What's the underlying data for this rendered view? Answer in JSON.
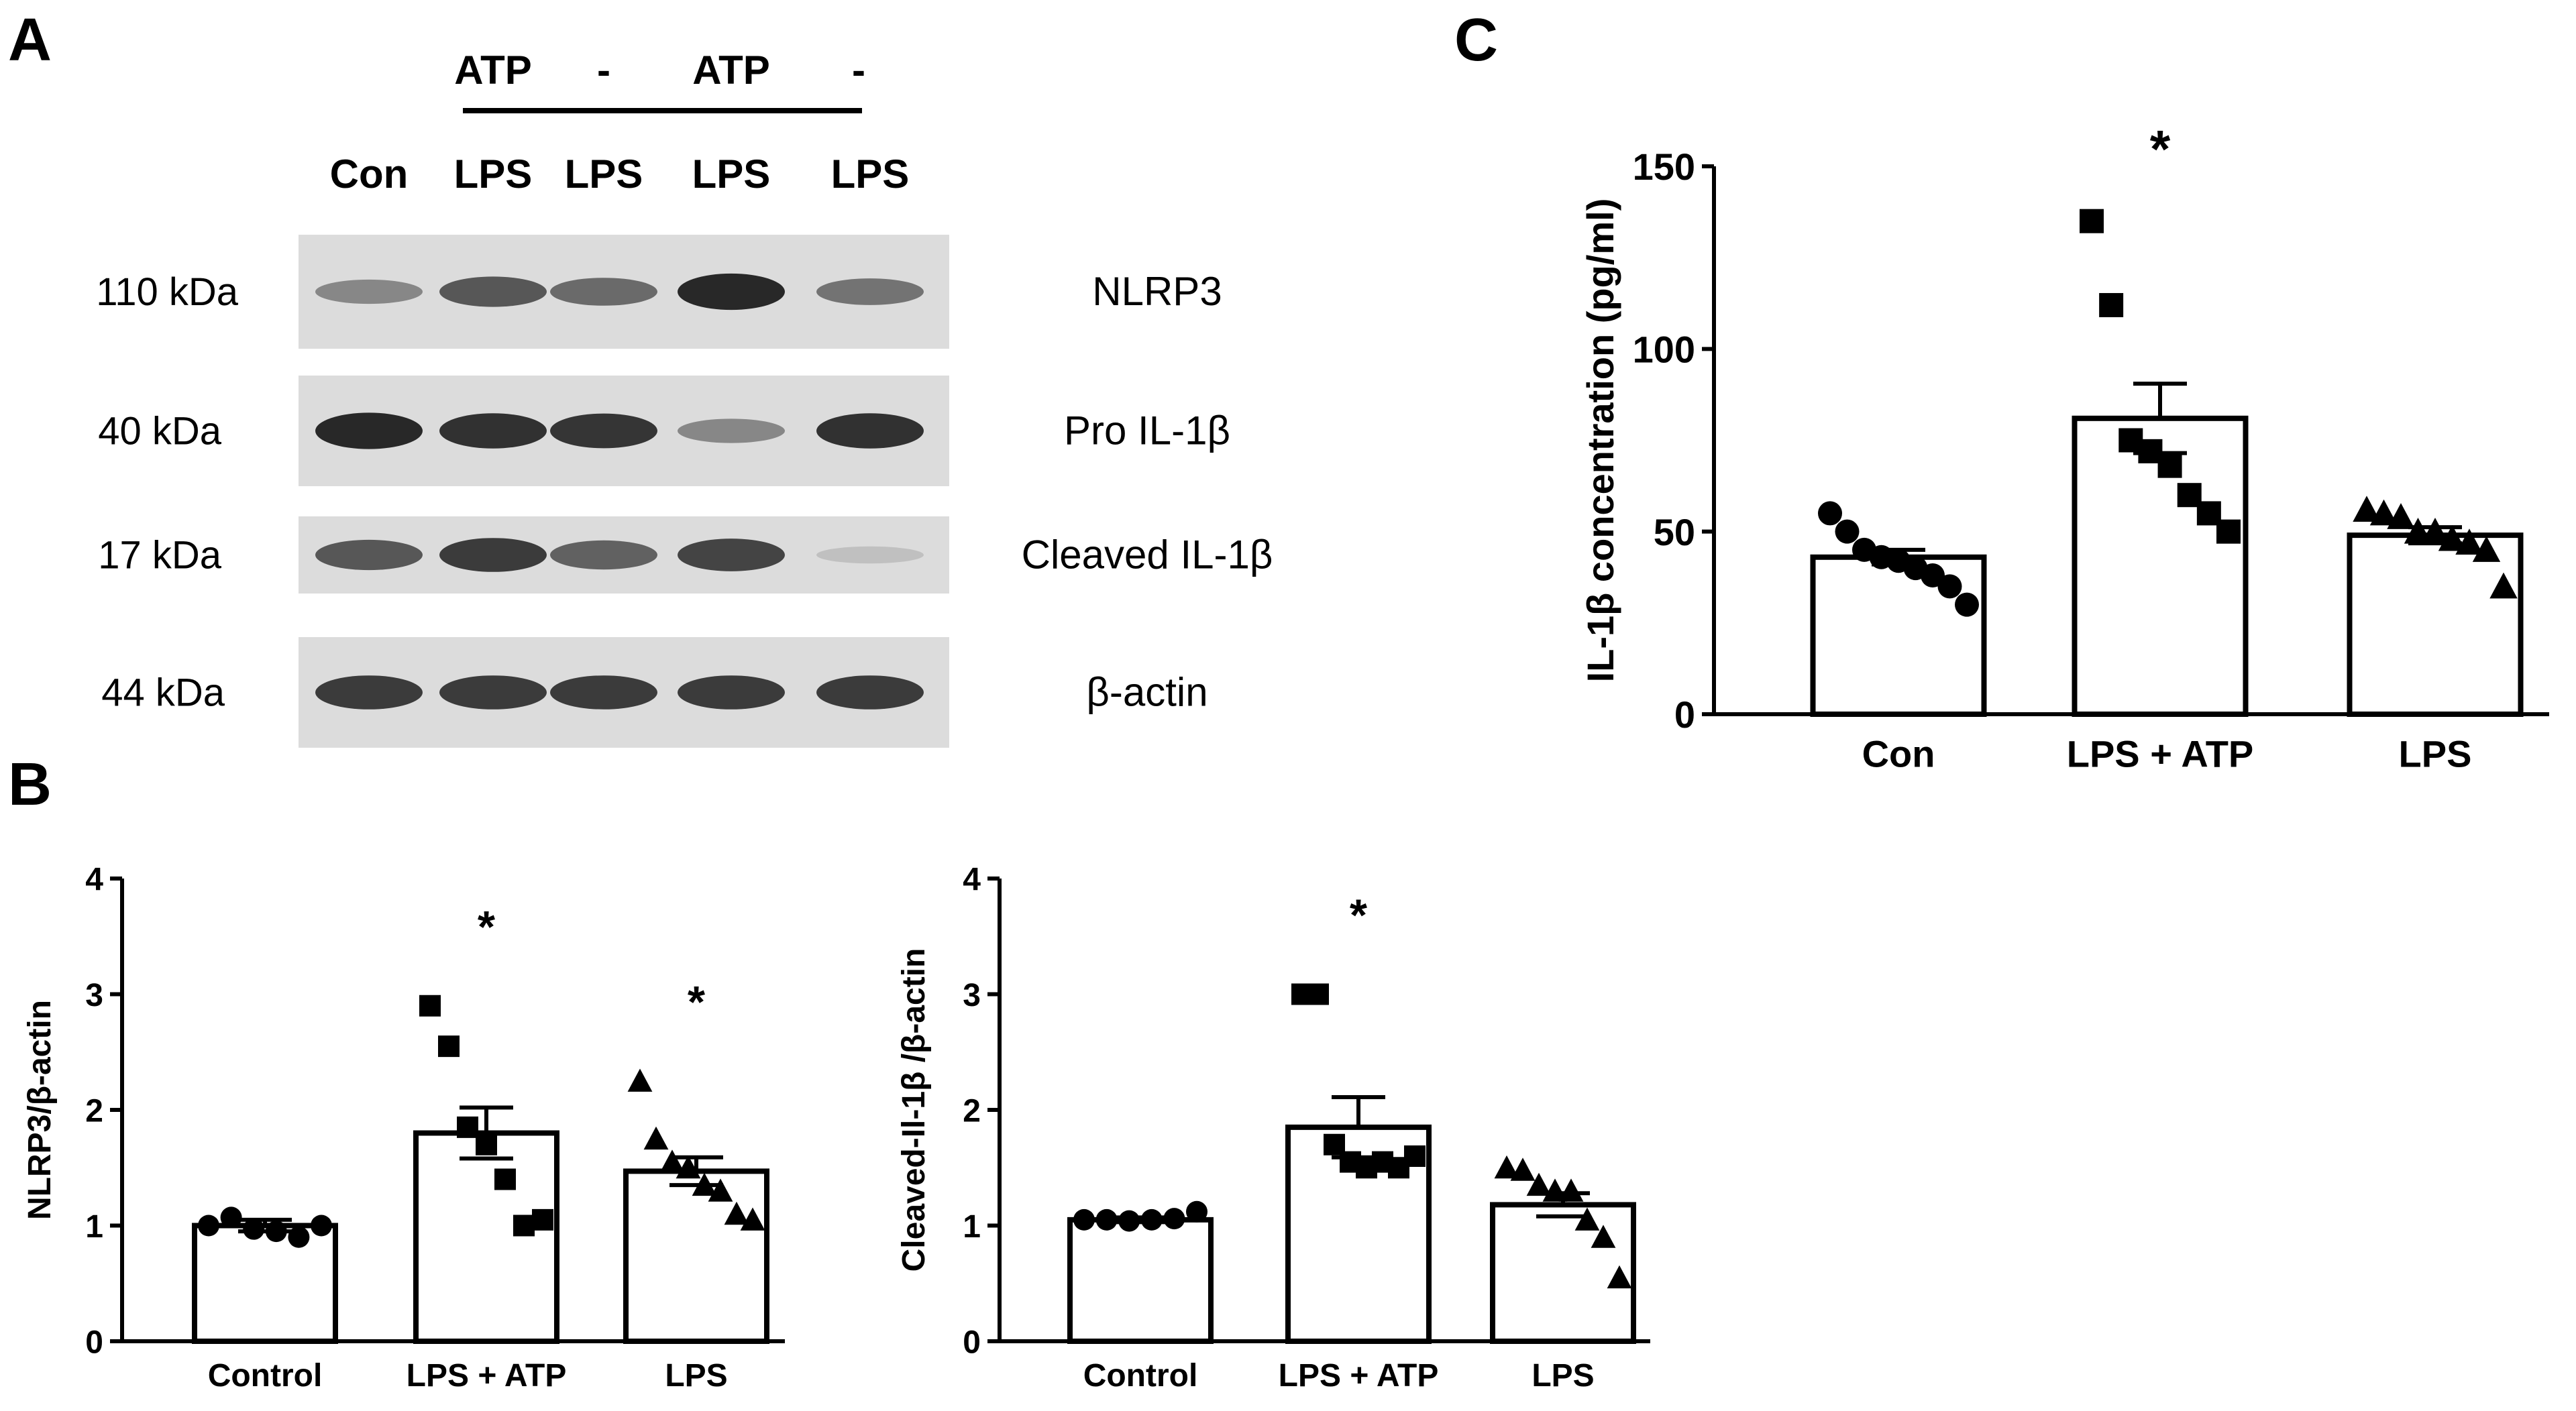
{
  "panel_labels": [
    "A",
    "B",
    "C"
  ],
  "blot": {
    "top_labels": [
      "ATP",
      "-",
      "ATP",
      "-"
    ],
    "lanes": [
      "Con",
      "LPS",
      "LPS",
      "LPS",
      "LPS"
    ],
    "rows": [
      {
        "size": "110 kDa",
        "name": "NLRP3",
        "intensities": [
          0.45,
          0.7,
          0.6,
          0.95,
          0.55
        ]
      },
      {
        "size": "40 kDa",
        "name": "Pro IL-1β",
        "intensities": [
          0.95,
          0.9,
          0.88,
          0.45,
          0.9
        ]
      },
      {
        "size": "17 kDa",
        "name": "Cleaved  IL-1β",
        "intensities": [
          0.7,
          0.85,
          0.65,
          0.8,
          0.15
        ]
      },
      {
        "size": "44 kDa",
        "name": "β-actin",
        "intensities": [
          0.85,
          0.85,
          0.85,
          0.85,
          0.85
        ]
      }
    ]
  },
  "chart_data": [
    {
      "panel": "B-left",
      "type": "bar",
      "categories": [
        "Control",
        "LPS + ATP",
        "LPS"
      ],
      "values": [
        1.0,
        1.8,
        1.47
      ],
      "errors": [
        0.05,
        0.22,
        0.12
      ],
      "markers": [
        "circle",
        "square",
        "triangle"
      ],
      "points": [
        [
          1.0,
          1.07,
          0.97,
          0.95,
          0.9,
          1.0
        ],
        [
          2.9,
          2.55,
          1.85,
          1.7,
          1.4,
          1.0,
          1.05
        ],
        [
          2.25,
          1.75,
          1.55,
          1.5,
          1.35,
          1.3,
          1.1,
          1.05
        ]
      ],
      "significance": [
        "",
        "*",
        "*"
      ],
      "ylabel": "NLRP3/β-actin",
      "ylim": [
        0,
        4
      ],
      "yticks": [
        0,
        1,
        2,
        3,
        4
      ]
    },
    {
      "panel": "B-right",
      "type": "bar",
      "categories": [
        "Control",
        "LPS + ATP",
        "LPS"
      ],
      "values": [
        1.05,
        1.85,
        1.18
      ],
      "errors": [
        0.02,
        0.26,
        0.1
      ],
      "markers": [
        "circle",
        "square",
        "triangle"
      ],
      "points": [
        [
          1.05,
          1.05,
          1.04,
          1.05,
          1.06,
          1.12
        ],
        [
          3.0,
          3.0,
          1.7,
          1.55,
          1.5,
          1.55,
          1.5,
          1.6
        ],
        [
          1.5,
          1.48,
          1.35,
          1.3,
          1.3,
          1.05,
          0.9,
          0.55
        ]
      ],
      "significance": [
        "",
        "*",
        ""
      ],
      "ylabel": "Cleaved-Il-1β /β-actin",
      "ylim": [
        0,
        4
      ],
      "yticks": [
        0,
        1,
        2,
        3,
        4
      ]
    },
    {
      "panel": "C",
      "type": "bar",
      "categories": [
        "Con",
        "LPS + ATP",
        "LPS"
      ],
      "values": [
        43,
        81,
        49
      ],
      "errors": [
        2,
        9.5,
        2.2
      ],
      "markers": [
        "circle",
        "square",
        "triangle"
      ],
      "points": [
        [
          55,
          50,
          45,
          43,
          42,
          40,
          38,
          35,
          30
        ],
        [
          135,
          112,
          75,
          72,
          68,
          60,
          55,
          50
        ],
        [
          56,
          55,
          54,
          50,
          50,
          48,
          47,
          45,
          35
        ]
      ],
      "significance": [
        "",
        "*",
        ""
      ],
      "ylabel": "IL-1β concentration (pg/ml)",
      "ylim": [
        0,
        150
      ],
      "yticks": [
        0,
        50,
        100,
        150
      ]
    }
  ]
}
